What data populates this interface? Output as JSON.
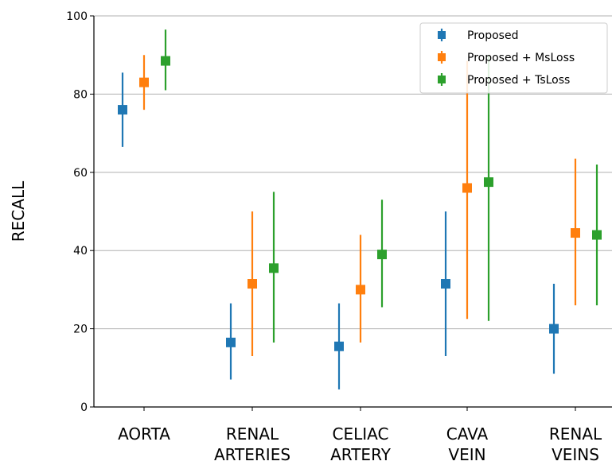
{
  "chart_data": {
    "type": "scatter",
    "subtype": "errorbar",
    "title": "",
    "xlabel": "",
    "ylabel": "RECALL",
    "ylim": [
      0,
      100
    ],
    "yticks": [
      0,
      20,
      40,
      60,
      80,
      100
    ],
    "grid": "horizontal",
    "legend_position": "top-right",
    "categories": [
      [
        "AORTA"
      ],
      [
        "RENAL",
        "ARTERIES"
      ],
      [
        "CELIAC",
        "ARTERY"
      ],
      [
        "CAVA",
        "VEIN"
      ],
      [
        "RENAL",
        "VEINS"
      ]
    ],
    "series": [
      {
        "name": "Proposed",
        "color": "#1f77b4",
        "values": [
          76,
          16.5,
          15.5,
          31.5,
          20
        ],
        "lower": [
          66.5,
          7,
          4.5,
          13,
          8.5
        ],
        "upper": [
          85.5,
          26.5,
          26.5,
          50,
          31.5
        ]
      },
      {
        "name": "Proposed + MsLoss",
        "color": "#ff7f0e",
        "values": [
          83,
          31.5,
          30,
          56,
          44.5
        ],
        "lower": [
          76,
          13,
          16.5,
          22.5,
          26
        ],
        "upper": [
          90,
          50,
          44,
          88.5,
          63.5
        ]
      },
      {
        "name": "Proposed + TsLoss",
        "color": "#2ca02c",
        "values": [
          88.5,
          35.5,
          39,
          57.5,
          44
        ],
        "lower": [
          81,
          16.5,
          25.5,
          22,
          26
        ],
        "upper": [
          96.5,
          55,
          53,
          90,
          62
        ]
      }
    ]
  }
}
